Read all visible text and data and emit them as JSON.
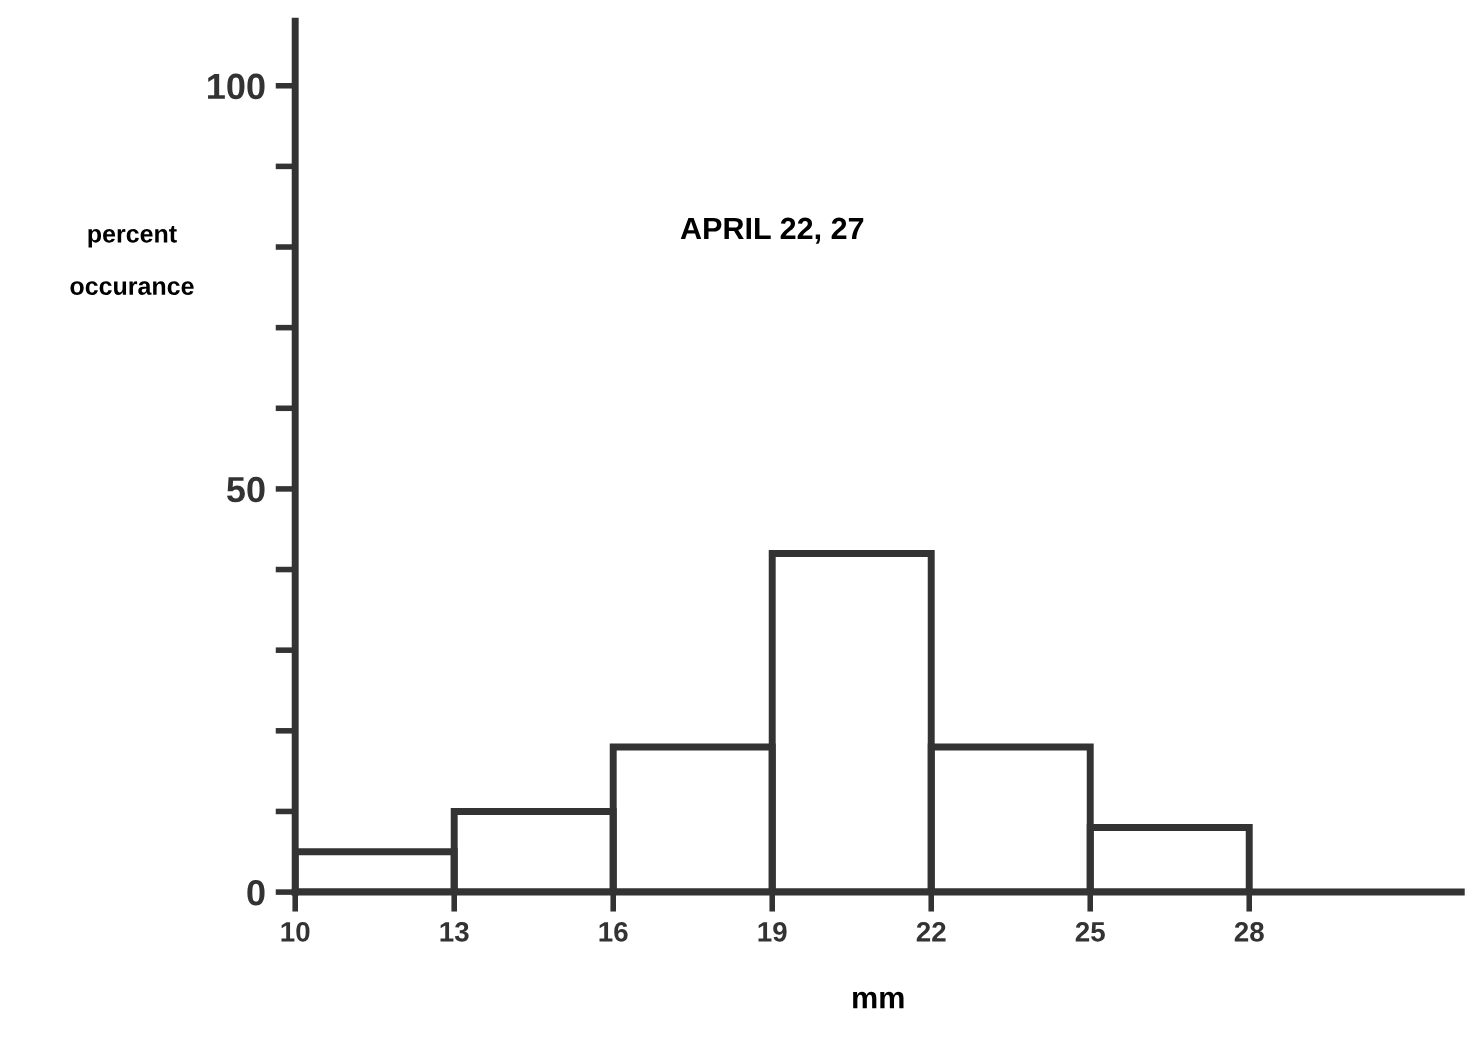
{
  "chart_data": {
    "type": "histogram",
    "xlabel": "mm",
    "ylabel": "percent\noccurance",
    "annotations": [
      "APRIL 22, 27"
    ],
    "bins": [
      10,
      13,
      16,
      19,
      22,
      25,
      28
    ],
    "values": [
      5,
      10,
      18,
      42,
      18,
      8
    ],
    "color": "#333333",
    "xlim": [
      10,
      32
    ],
    "ylim": [
      0,
      108
    ],
    "xticks": [
      10,
      13,
      16,
      19,
      22,
      25,
      28
    ],
    "yticks": [
      0,
      {
        "value": 10,
        "label": null
      },
      {
        "value": 20,
        "label": null
      },
      {
        "value": 30,
        "label": null
      },
      {
        "value": 40,
        "label": null
      },
      50,
      {
        "value": 60,
        "label": null
      },
      {
        "value": 70,
        "label": null
      },
      {
        "value": 80,
        "label": null
      },
      {
        "value": 90,
        "label": null
      },
      100
    ],
    "grid": false,
    "legend": false
  }
}
